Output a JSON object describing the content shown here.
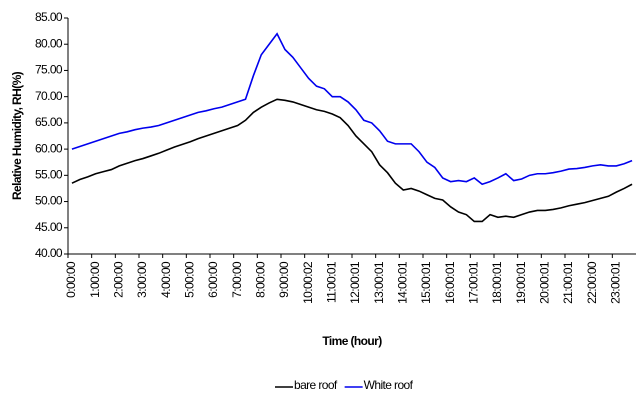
{
  "chart_data": {
    "type": "line",
    "y_label": "Relative Humidity, RH(%)",
    "x_label": "Time (hour)",
    "categories": [
      "0:00:00",
      null,
      null,
      "1:00:00",
      null,
      null,
      "2:00:00",
      null,
      null,
      "3:00:00",
      null,
      null,
      "4:00:00",
      null,
      null,
      "5:00:00",
      null,
      null,
      "6:00:00",
      null,
      null,
      "7:00:00",
      null,
      null,
      "8:00:00",
      null,
      null,
      "9:00:00",
      null,
      null,
      "10:00:02",
      null,
      null,
      "11:00:01",
      null,
      null,
      "12:00:01",
      null,
      null,
      "13:00:01",
      null,
      null,
      "14:00:01",
      null,
      null,
      "15:00:01",
      null,
      null,
      "16:00:01",
      null,
      null,
      "17:00:01",
      null,
      null,
      "18:00:01",
      null,
      null,
      "19:00:01",
      null,
      null,
      "20:00:01",
      null,
      null,
      "21:00:01",
      null,
      null,
      "22:00:00",
      null,
      null,
      "23:00:01",
      null,
      null
    ],
    "series": [
      {
        "name": "bare roof",
        "color": "#000000",
        "values": [
          53.5,
          54.2,
          54.7,
          55.3,
          55.7,
          56.1,
          56.8,
          57.3,
          57.8,
          58.2,
          58.7,
          59.2,
          59.8,
          60.4,
          60.9,
          61.4,
          62.0,
          62.5,
          63.0,
          63.5,
          64.0,
          64.5,
          65.5,
          67.0,
          68.0,
          68.8,
          69.5,
          69.3,
          69.0,
          68.5,
          68.0,
          67.5,
          67.2,
          66.7,
          66.0,
          64.5,
          62.5,
          61.0,
          59.5,
          57.0,
          55.5,
          53.5,
          52.2,
          52.5,
          52.0,
          51.3,
          50.6,
          50.3,
          49.0,
          48.0,
          47.5,
          46.2,
          46.2,
          47.5,
          47.0,
          47.2,
          47.0,
          47.5,
          48.0,
          48.3,
          48.3,
          48.5,
          48.8,
          49.2,
          49.5,
          49.8,
          50.2,
          50.6,
          51.0,
          51.8,
          52.5,
          53.3
        ]
      },
      {
        "name": "White roof",
        "color": "#0000ee",
        "values": [
          60.0,
          60.5,
          61.0,
          61.5,
          62.0,
          62.5,
          63.0,
          63.3,
          63.7,
          64.0,
          64.2,
          64.5,
          65.0,
          65.5,
          66.0,
          66.5,
          67.0,
          67.3,
          67.7,
          68.0,
          68.5,
          69.0,
          69.5,
          74.0,
          78.0,
          80.0,
          82.0,
          79.0,
          77.5,
          75.5,
          73.5,
          72.0,
          71.5,
          70.0,
          70.0,
          69.0,
          67.5,
          65.5,
          65.0,
          63.5,
          61.5,
          61.0,
          61.0,
          61.0,
          59.5,
          57.5,
          56.5,
          54.5,
          53.8,
          54.0,
          53.8,
          54.5,
          53.3,
          53.8,
          54.5,
          55.3,
          54.0,
          54.3,
          55.0,
          55.3,
          55.3,
          55.5,
          55.8,
          56.2,
          56.3,
          56.5,
          56.8,
          57.0,
          56.8,
          56.8,
          57.2,
          57.8
        ]
      }
    ],
    "ylim": [
      40,
      85
    ],
    "yticks": [
      {
        "value": 40,
        "label": "40.00"
      },
      {
        "value": 45,
        "label": "45.00"
      },
      {
        "value": 50,
        "label": "50.00"
      },
      {
        "value": 55,
        "label": "55.00"
      },
      {
        "value": 60,
        "label": "60.00"
      },
      {
        "value": 65,
        "label": "65.00"
      },
      {
        "value": 70,
        "label": "70.00"
      },
      {
        "value": 75,
        "label": "75.00"
      },
      {
        "value": 80,
        "label": "80.00"
      },
      {
        "value": 85,
        "label": "85.00"
      }
    ],
    "legend": "bottom"
  }
}
